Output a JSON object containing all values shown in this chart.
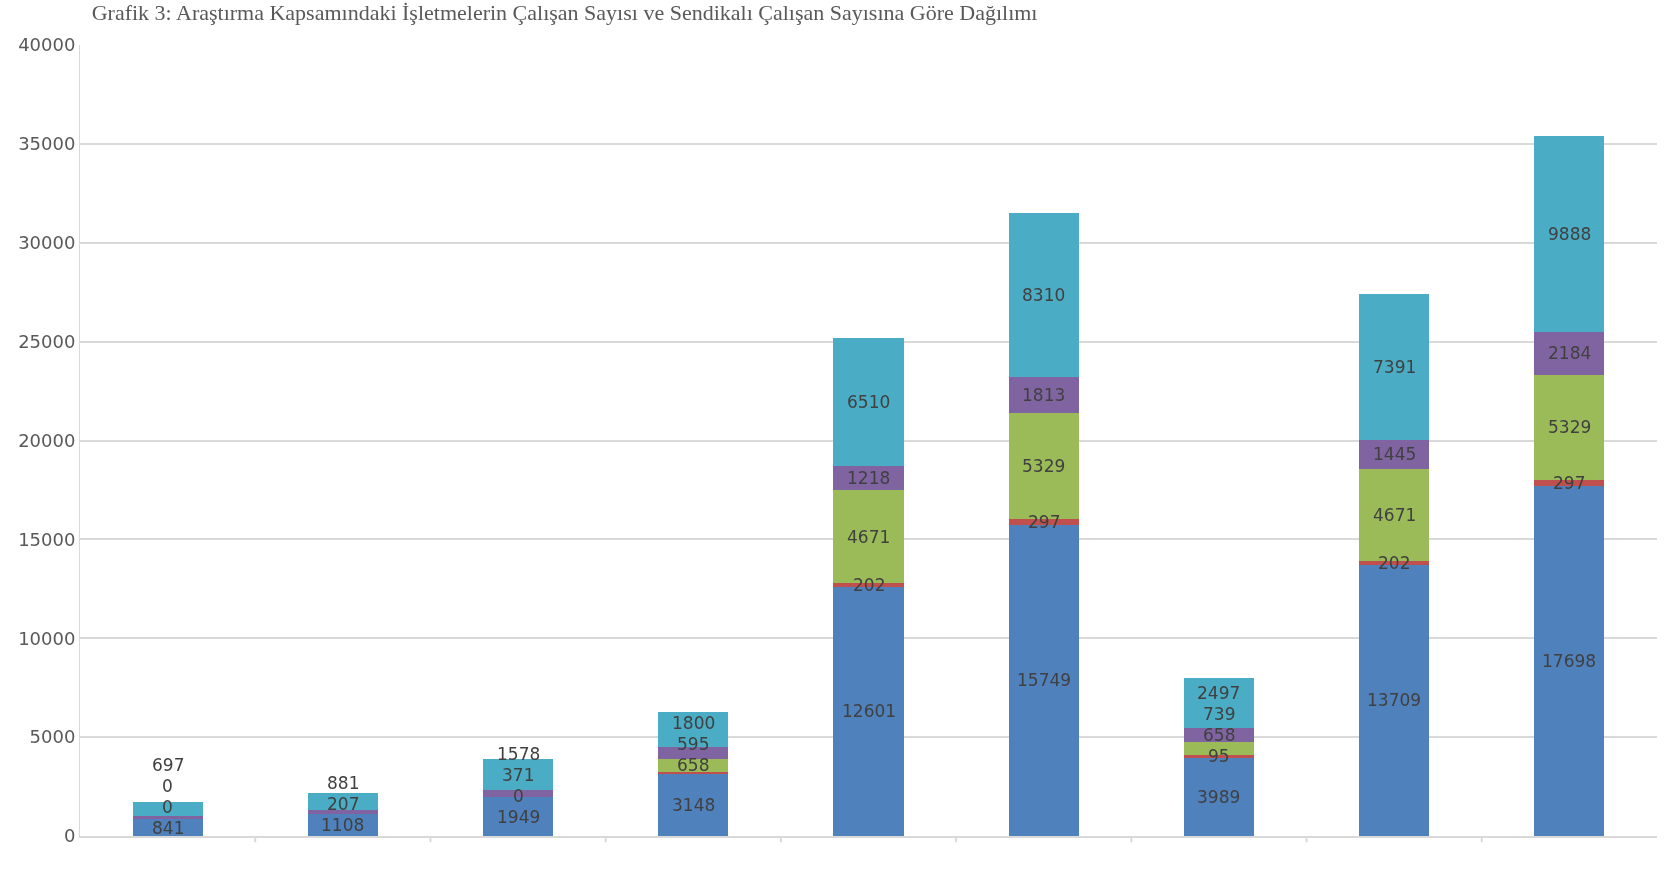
{
  "chart_data": {
    "type": "bar",
    "stacked": true,
    "title": "Grafik 3: Araştırma Kapsamındaki İşletmelerin Çalışan Sayısı ve Sendikalı Çalışan Sayısına Göre Dağılımı",
    "categories": [
      null,
      null,
      null,
      null,
      null,
      null,
      null,
      null,
      null
    ],
    "series": [
      {
        "color": "#4f81bd",
        "values": [
          841,
          1108,
          1949,
          3148,
          12601,
          15749,
          3989,
          13709,
          17698
        ],
        "value_labels": [
          "841",
          "1108",
          "1949",
          "3148",
          "12601",
          "15749",
          "3989",
          "13709",
          "17698"
        ]
      },
      {
        "color": "#c0504d",
        "values": [
          0,
          0,
          0,
          95,
          202,
          297,
          95,
          202,
          297
        ],
        "value_labels": [
          "0",
          null,
          "0",
          null,
          "202",
          "297",
          "95",
          "202",
          "297"
        ]
      },
      {
        "color": "#9bbb59",
        "values": [
          0,
          0,
          0,
          658,
          4671,
          5329,
          658,
          4671,
          5329
        ],
        "value_labels": [
          "0",
          null,
          null,
          "658",
          "4671",
          "5329",
          "658",
          "4671",
          "5329"
        ]
      },
      {
        "color": "#8064a2",
        "values": [
          160,
          207,
          371,
          595,
          1218,
          1813,
          739,
          1445,
          2184
        ],
        "value_labels": [
          null,
          "207",
          "371",
          "595",
          "1218",
          "1813",
          "739",
          "1445",
          "2184"
        ]
      },
      {
        "color": "#4bacc6",
        "values": [
          697,
          881,
          1578,
          1800,
          6510,
          8310,
          2497,
          7391,
          9888
        ],
        "value_labels": [
          "697",
          "881",
          "1578",
          "1800",
          "6510",
          "8310",
          "2497",
          "7391",
          "9888"
        ]
      }
    ],
    "ylim": [
      0,
      40000
    ],
    "yticks": [
      0,
      5000,
      10000,
      15000,
      20000,
      25000,
      30000,
      35000,
      40000
    ],
    "grid": "y"
  }
}
